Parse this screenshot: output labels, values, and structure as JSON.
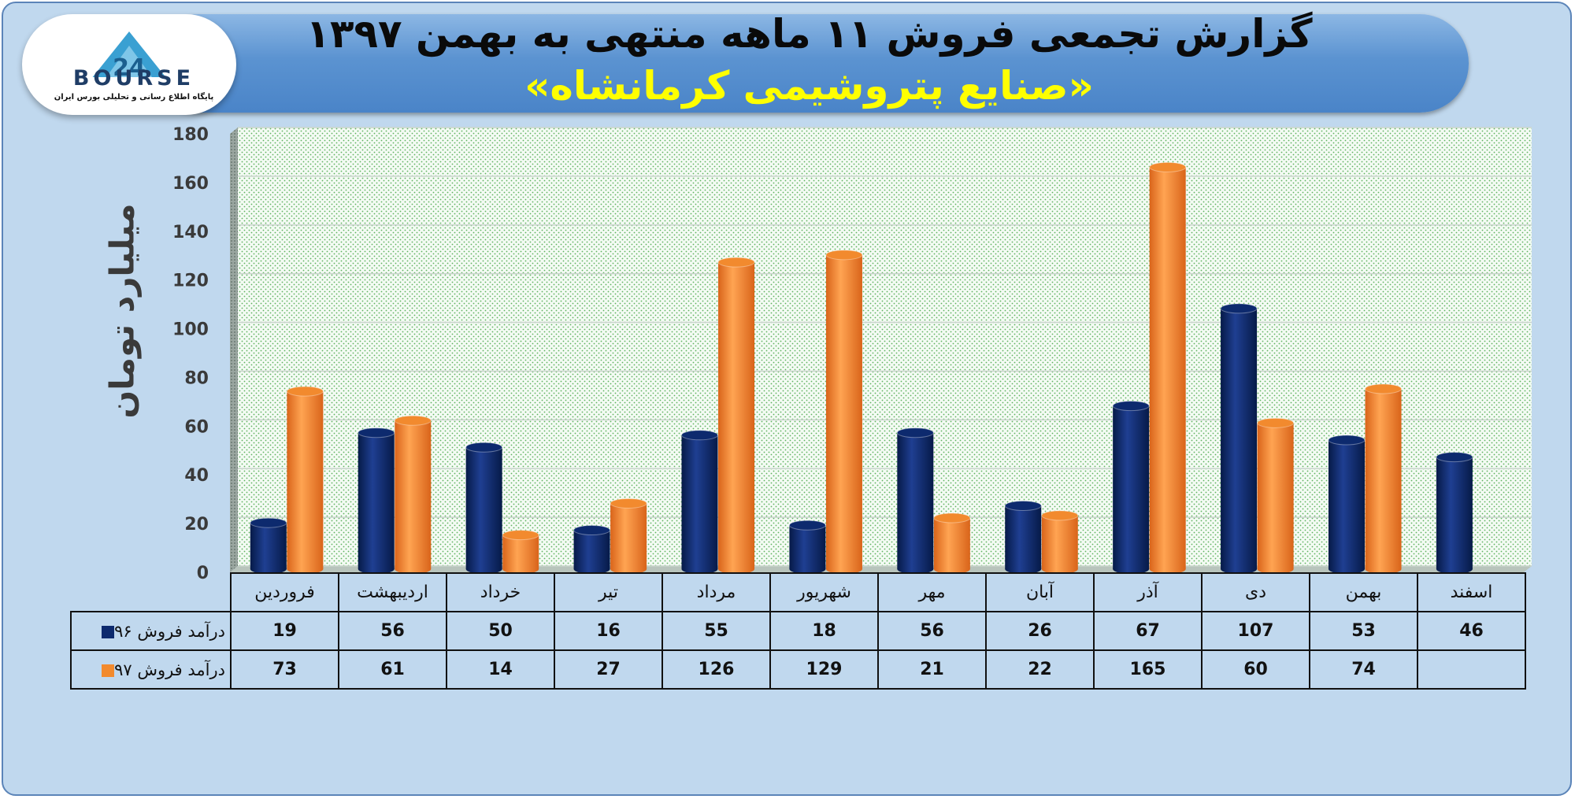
{
  "header": {
    "title": "گزارش تجمعی فروش ۱۱ ماهه منتهی به بهمن ۱۳۹۷",
    "subtitle": "«صنایع پتروشیمی کرمانشاه»"
  },
  "logo": {
    "wordmark": "BOURSE",
    "tagline": "پایگاه اطلاع رسانی و تحلیلی بورس ایران",
    "mark": "24"
  },
  "colors": {
    "series_96": "#0d2a6e",
    "series_97": "#f28a2e",
    "banner": "#5b93d1",
    "background": "#c0d8ee"
  },
  "chart_data": {
    "type": "bar",
    "ylabel": "میلیارد تومان",
    "ylim": [
      0,
      180
    ],
    "yticks": [
      0,
      20,
      40,
      60,
      80,
      100,
      120,
      140,
      160,
      180
    ],
    "grid": true,
    "categories": [
      "فروردین",
      "اردیبهشت",
      "خرداد",
      "تیر",
      "مرداد",
      "شهریور",
      "مهر",
      "آبان",
      "آذر",
      "دی",
      "بهمن",
      "اسفند"
    ],
    "series": [
      {
        "name": "درآمد فروش ۹۶",
        "values": [
          19,
          56,
          50,
          16,
          55,
          18,
          56,
          26,
          67,
          107,
          53,
          46
        ]
      },
      {
        "name": "درآمد فروش ۹۷",
        "values": [
          73,
          61,
          14,
          27,
          126,
          129,
          21,
          22,
          165,
          60,
          74,
          null
        ]
      }
    ]
  }
}
